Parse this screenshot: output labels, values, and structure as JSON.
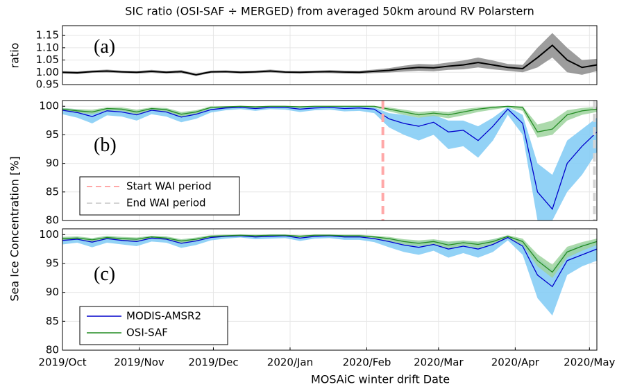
{
  "chart_data": [
    {
      "type": "line",
      "title": "SIC ratio (OSI-SAF ÷ MERGED) from averaged 50km around RV Polarstern",
      "ylabel": "ratio",
      "panel_label": "(a)",
      "x": [
        0,
        6,
        12,
        18,
        24,
        30,
        36,
        42,
        48,
        54,
        60,
        66,
        72,
        78,
        84,
        90,
        96,
        102,
        108,
        114,
        120,
        126,
        132,
        138,
        144,
        150,
        156,
        162,
        168,
        174,
        180,
        186,
        192,
        198,
        204,
        210,
        216
      ],
      "xlim": [
        0,
        216
      ],
      "ylim": [
        0.95,
        1.19
      ],
      "yticks": [
        0.95,
        {
          "value": 1,
          "label": "1.00"
        },
        1.05,
        {
          "value": 1.1,
          "label": "1.10"
        },
        1.15
      ],
      "grid": true,
      "series": [
        {
          "color": "#000000",
          "band_color": "#8c8c8c",
          "values": [
            1.0,
            0.998,
            1.003,
            1.005,
            1.002,
            1.0,
            1.004,
            1.0,
            1.003,
            0.99,
            1.002,
            1.003,
            1.0,
            1.002,
            1.005,
            1.001,
            1.0,
            1.002,
            1.003,
            1.001,
            1.0,
            1.004,
            1.008,
            1.015,
            1.02,
            1.018,
            1.025,
            1.03,
            1.04,
            1.03,
            1.02,
            1.015,
            1.06,
            1.11,
            1.05,
            1.02,
            1.03
          ],
          "lower": [
            0.995,
            0.993,
            0.998,
            0.999,
            0.997,
            0.995,
            0.998,
            0.995,
            0.997,
            0.985,
            0.997,
            0.998,
            0.995,
            0.997,
            0.999,
            0.996,
            0.995,
            0.997,
            0.997,
            0.995,
            0.994,
            0.997,
            0.999,
            1.003,
            1.006,
            1.004,
            1.01,
            1.012,
            1.02,
            1.012,
            1.006,
            1.0,
            1.02,
            1.06,
            1.0,
            0.99,
            1.005
          ],
          "upper": [
            1.005,
            1.004,
            1.008,
            1.011,
            1.007,
            1.005,
            1.01,
            1.005,
            1.009,
            0.995,
            1.007,
            1.008,
            1.005,
            1.007,
            1.011,
            1.006,
            1.005,
            1.007,
            1.009,
            1.007,
            1.006,
            1.011,
            1.017,
            1.027,
            1.034,
            1.032,
            1.04,
            1.048,
            1.06,
            1.048,
            1.034,
            1.03,
            1.1,
            1.16,
            1.1,
            1.05,
            1.055
          ]
        }
      ]
    },
    {
      "type": "line",
      "ylabel": "Sea Ice Concentration [%]",
      "panel_label": "(b)",
      "x": [
        0,
        6,
        12,
        18,
        24,
        30,
        36,
        42,
        48,
        54,
        60,
        66,
        72,
        78,
        84,
        90,
        96,
        102,
        108,
        114,
        120,
        126,
        132,
        138,
        144,
        150,
        156,
        162,
        168,
        174,
        180,
        186,
        192,
        198,
        204,
        210,
        216
      ],
      "xlim": [
        0,
        216
      ],
      "ylim": [
        80,
        101
      ],
      "yticks": [
        80,
        85,
        90,
        95,
        100
      ],
      "grid": true,
      "vlines": [
        {
          "x": 129.5,
          "label": "Start WAI period",
          "color": "#ffa8a8"
        },
        {
          "x": 215,
          "label": "End WAI period",
          "color": "#d4d4d4"
        }
      ],
      "series": [
        {
          "color": "#0000cc",
          "band_color": "#7fcaf5",
          "values": [
            99.3,
            98.9,
            98.2,
            99.2,
            99.0,
            98.5,
            99.3,
            99.0,
            98.1,
            98.6,
            99.4,
            99.7,
            99.8,
            99.6,
            99.8,
            99.8,
            99.5,
            99.7,
            99.8,
            99.6,
            99.7,
            99.5,
            97.8,
            97.0,
            96.5,
            97.2,
            95.5,
            95.8,
            94.0,
            96.5,
            99.5,
            97.0,
            85.0,
            82.0,
            90.0,
            93.0,
            95.5
          ],
          "lower": [
            98.6,
            98.0,
            97.0,
            98.4,
            98.2,
            97.5,
            98.6,
            98.2,
            97.2,
            97.8,
            98.9,
            99.3,
            99.5,
            99.2,
            99.5,
            99.4,
            99.0,
            99.3,
            99.4,
            99.1,
            99.2,
            98.8,
            96.3,
            95.0,
            94.0,
            95.0,
            92.5,
            93.0,
            91.0,
            94.0,
            98.5,
            95.0,
            80.0,
            80.0,
            85.0,
            88.0,
            92.0
          ],
          "upper": [
            99.7,
            99.5,
            99.0,
            99.7,
            99.6,
            99.2,
            99.7,
            99.6,
            98.8,
            99.2,
            99.8,
            99.9,
            100,
            99.9,
            100,
            100,
            99.8,
            99.9,
            100,
            99.9,
            99.9,
            99.8,
            98.8,
            98.5,
            98.0,
            98.5,
            97.5,
            97.5,
            96.5,
            98.0,
            99.9,
            98.5,
            90.0,
            88.0,
            94.0,
            96.0,
            98.0
          ]
        },
        {
          "color": "#228b22",
          "band_color": "#9ed49e",
          "values": [
            99.5,
            99.2,
            99.0,
            99.6,
            99.5,
            99.0,
            99.6,
            99.4,
            98.6,
            99.0,
            99.8,
            99.9,
            100,
            99.9,
            100,
            100,
            99.9,
            100,
            100,
            100,
            100,
            100,
            99.5,
            99.0,
            98.5,
            98.8,
            98.5,
            99.0,
            99.5,
            99.8,
            100,
            99.8,
            95.5,
            96.0,
            98.5,
            99.2,
            99.5
          ],
          "lower": [
            99.2,
            98.9,
            98.6,
            99.3,
            99.2,
            98.6,
            99.3,
            99.1,
            98.2,
            98.7,
            99.6,
            99.7,
            99.9,
            99.7,
            99.9,
            99.9,
            99.7,
            99.9,
            99.9,
            99.9,
            99.9,
            99.8,
            99.1,
            98.5,
            98.0,
            98.3,
            97.9,
            98.4,
            99.0,
            99.4,
            99.8,
            99.2,
            94.5,
            95.0,
            97.5,
            98.5,
            99.0
          ],
          "upper": [
            99.7,
            99.5,
            99.4,
            99.8,
            99.8,
            99.4,
            99.8,
            99.7,
            99.0,
            99.3,
            100,
            100,
            100,
            100,
            100,
            100,
            100,
            100,
            100,
            100,
            100,
            100,
            99.8,
            99.4,
            99.0,
            99.2,
            99.0,
            99.5,
            99.8,
            100,
            100,
            100,
            96.8,
            97.5,
            99.3,
            99.7,
            99.9
          ]
        }
      ]
    },
    {
      "type": "line",
      "xlabel": "MOSAiC winter drift Date",
      "panel_label": "(c)",
      "x": [
        0,
        6,
        12,
        18,
        24,
        30,
        36,
        42,
        48,
        54,
        60,
        66,
        72,
        78,
        84,
        90,
        96,
        102,
        108,
        114,
        120,
        126,
        132,
        138,
        144,
        150,
        156,
        162,
        168,
        174,
        180,
        186,
        192,
        198,
        204,
        210,
        216
      ],
      "xlim": [
        0,
        216
      ],
      "ylim": [
        80,
        101
      ],
      "yticks": [
        80,
        85,
        90,
        95,
        100
      ],
      "grid": true,
      "xticks": [
        {
          "value": 0,
          "label": "2019/Oct"
        },
        {
          "value": 31,
          "label": "2019/Nov"
        },
        {
          "value": 61,
          "label": "2019/Dec"
        },
        {
          "value": 92,
          "label": "2020/Jan"
        },
        {
          "value": 123,
          "label": "2020/Feb"
        },
        {
          "value": 152,
          "label": "2020/Mar"
        },
        {
          "value": 183,
          "label": "2020/Apr"
        },
        {
          "value": 213,
          "label": "2020/May"
        }
      ],
      "series": [
        {
          "name": "MODIS-AMSR2",
          "color": "#0000cc",
          "band_color": "#7fcaf5",
          "values": [
            99.0,
            99.2,
            98.7,
            99.3,
            99.0,
            98.8,
            99.4,
            99.2,
            98.5,
            98.9,
            99.5,
            99.7,
            99.8,
            99.6,
            99.7,
            99.8,
            99.4,
            99.7,
            99.8,
            99.6,
            99.6,
            99.3,
            98.8,
            98.2,
            97.8,
            98.3,
            97.5,
            98.0,
            97.5,
            98.3,
            99.5,
            98.0,
            93.0,
            91.0,
            95.5,
            96.5,
            97.5
          ],
          "lower": [
            98.3,
            98.6,
            97.8,
            98.6,
            98.3,
            98.0,
            98.8,
            98.6,
            97.7,
            98.2,
            99.0,
            99.3,
            99.5,
            99.2,
            99.3,
            99.4,
            98.9,
            99.3,
            99.4,
            99.1,
            99.1,
            98.7,
            97.8,
            97.0,
            96.5,
            97.2,
            96.0,
            96.8,
            96.0,
            97.0,
            99.0,
            96.5,
            89.0,
            86.0,
            93.0,
            94.5,
            95.5
          ],
          "upper": [
            99.5,
            99.6,
            99.3,
            99.7,
            99.5,
            99.4,
            99.7,
            99.6,
            99.1,
            99.4,
            99.8,
            99.9,
            100,
            99.9,
            100,
            100,
            99.8,
            99.9,
            100,
            99.9,
            99.9,
            99.7,
            99.4,
            99.0,
            98.8,
            99.1,
            98.7,
            98.9,
            98.7,
            99.2,
            99.8,
            99.0,
            96.0,
            94.0,
            97.5,
            98.3,
            99.0
          ]
        },
        {
          "name": "OSI-SAF",
          "color": "#228b22",
          "band_color": "#9ed49e",
          "values": [
            99.3,
            99.4,
            99.1,
            99.5,
            99.3,
            99.2,
            99.6,
            99.4,
            98.9,
            99.2,
            99.7,
            99.8,
            99.9,
            99.8,
            99.9,
            99.9,
            99.7,
            99.9,
            99.9,
            99.8,
            99.8,
            99.6,
            99.3,
            98.8,
            98.5,
            98.8,
            98.2,
            98.6,
            98.3,
            98.8,
            99.7,
            98.8,
            95.5,
            93.5,
            97.0,
            98.0,
            98.8
          ],
          "lower": [
            99.0,
            99.1,
            98.8,
            99.2,
            99.0,
            98.9,
            99.3,
            99.1,
            98.5,
            98.9,
            99.5,
            99.6,
            99.7,
            99.6,
            99.7,
            99.7,
            99.5,
            99.7,
            99.7,
            99.6,
            99.6,
            99.3,
            98.9,
            98.3,
            98.0,
            98.3,
            97.6,
            98.1,
            97.7,
            98.3,
            99.4,
            98.2,
            94.5,
            92.5,
            96.0,
            97.2,
            98.2
          ],
          "upper": [
            99.6,
            99.7,
            99.4,
            99.8,
            99.6,
            99.5,
            99.8,
            99.7,
            99.2,
            99.5,
            99.9,
            100,
            100,
            100,
            100,
            100,
            99.9,
            100,
            100,
            100,
            100,
            99.8,
            99.6,
            99.2,
            99.0,
            99.2,
            98.8,
            99.0,
            98.8,
            99.2,
            99.9,
            99.3,
            96.6,
            94.8,
            97.9,
            98.7,
            99.3
          ]
        }
      ]
    }
  ]
}
